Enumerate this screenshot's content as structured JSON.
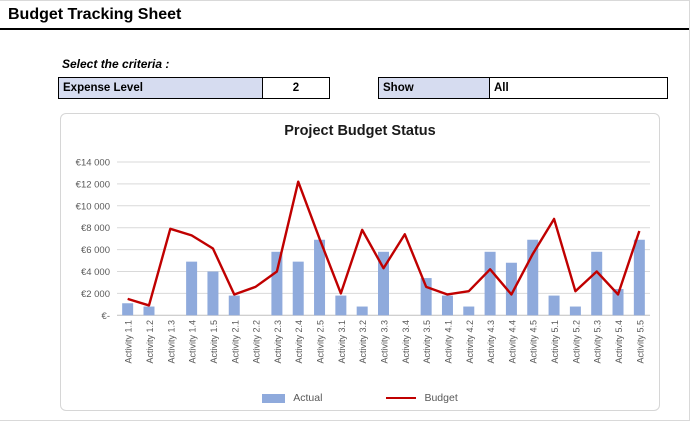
{
  "page": {
    "title": "Budget Tracking Sheet"
  },
  "criteria": {
    "heading": "Select the criteria :",
    "expense_level": {
      "label": "Expense Level",
      "value": "2"
    },
    "show": {
      "label": "Show",
      "value": "All"
    }
  },
  "chart_data": {
    "type": "bar",
    "subtype": "bar-line-combo",
    "title": "Project Budget Status",
    "categories": [
      "Activity 1.1",
      "Activity 1.2",
      "Activity 1.3",
      "Activity 1.4",
      "Activity 1.5",
      "Activity 2.1",
      "Activity 2.2",
      "Activity 2.3",
      "Activity 2.4",
      "Activity 2.5",
      "Activity 3.1",
      "Activity 3.2",
      "Activity 3.3",
      "Activity 3.4",
      "Activity 3.5",
      "Activity 4.1",
      "Activity 4.2",
      "Activity 4.3",
      "Activity 4.4",
      "Activity 4.5",
      "Activity 5.1",
      "Activity 5.2",
      "Activity 5.3",
      "Activity 5.4",
      "Activity 5.5"
    ],
    "series": [
      {
        "name": "Actual",
        "type": "bar",
        "color": "#8faadc",
        "values": [
          1100,
          800,
          0,
          4900,
          4000,
          1800,
          0,
          5800,
          4900,
          6900,
          1800,
          800,
          5800,
          0,
          3400,
          1800,
          800,
          5800,
          4800,
          6900,
          1800,
          800,
          5800,
          2400,
          6900
        ]
      },
      {
        "name": "Budget",
        "type": "line",
        "color": "#c00000",
        "values": [
          1500,
          900,
          7900,
          7300,
          6100,
          1900,
          2600,
          4000,
          12200,
          7000,
          2000,
          7800,
          4300,
          7400,
          2600,
          1900,
          2200,
          4200,
          1900,
          5600,
          8800,
          2200,
          4000,
          1900,
          7700
        ]
      }
    ],
    "y_ticks": [
      "€14 000",
      "€12 000",
      "€10 000",
      "€8 000",
      "€6 000",
      "€4 000",
      "€2 000",
      "€-"
    ],
    "ylim": [
      0,
      14000
    ],
    "y_tick_step": 2000,
    "grid": true,
    "legend_position": "bottom",
    "grid_color": "#d9d9d9",
    "axis_text_color": "#595959"
  }
}
